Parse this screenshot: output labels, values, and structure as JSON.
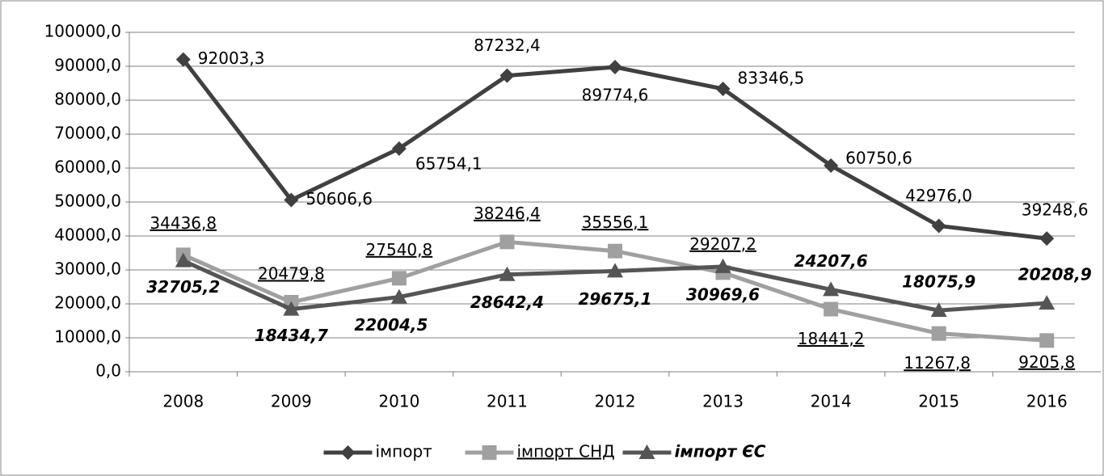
{
  "chart_data": {
    "type": "line",
    "categories": [
      "2008",
      "2009",
      "2010",
      "2011",
      "2012",
      "2013",
      "2014",
      "2015",
      "2016"
    ],
    "series": [
      {
        "name": "імпорт",
        "color": "#404040",
        "marker": "diamond",
        "values": [
          92003.3,
          50606.6,
          65754.1,
          87232.4,
          89774.6,
          83346.5,
          60750.6,
          42976.0,
          39248.6
        ],
        "value_labels": [
          "92003,3",
          "50606,6",
          "65754,1",
          "87232,4",
          "89774,6",
          "83346,5",
          "60750,6",
          "42976,0",
          "39248,6"
        ]
      },
      {
        "name": "імпорт СНД",
        "color": "#a0a0a0",
        "marker": "square",
        "values": [
          34436.8,
          20479.8,
          27540.8,
          38246.4,
          35556.1,
          29207.2,
          18441.2,
          11267.8,
          9205.8
        ],
        "value_labels": [
          "34436,8",
          "20479,8",
          "27540,8",
          "38246,4",
          "35556,1",
          "29207,2",
          "18441,2",
          "11267,8",
          "9205,8"
        ]
      },
      {
        "name": "імпорт ЄС",
        "color": "#555555",
        "marker": "triangle",
        "values": [
          32705.2,
          18434.7,
          22004.5,
          28642.4,
          29675.1,
          30969.6,
          24207.6,
          18075.9,
          20208.9
        ],
        "value_labels": [
          "32705,2",
          "18434,7",
          "22004,5",
          "28642,4",
          "29675,1",
          "30969,6",
          "24207,6",
          "18075,9",
          "20208,9"
        ]
      }
    ],
    "ylim": [
      0,
      100000
    ],
    "yticks": [
      {
        "value": 0,
        "label": "0,0"
      },
      {
        "value": 10000,
        "label": "10000,0"
      },
      {
        "value": 20000,
        "label": "20000,0"
      },
      {
        "value": 30000,
        "label": "30000,0"
      },
      {
        "value": 40000,
        "label": "40000,0"
      },
      {
        "value": 50000,
        "label": "50000,0"
      },
      {
        "value": 60000,
        "label": "60000,0"
      },
      {
        "value": 70000,
        "label": "70000,0"
      },
      {
        "value": 80000,
        "label": "80000,0"
      },
      {
        "value": 90000,
        "label": "90000,0"
      },
      {
        "value": 100000,
        "label": "100000,0"
      }
    ],
    "grid": true,
    "legend": "bottom"
  }
}
